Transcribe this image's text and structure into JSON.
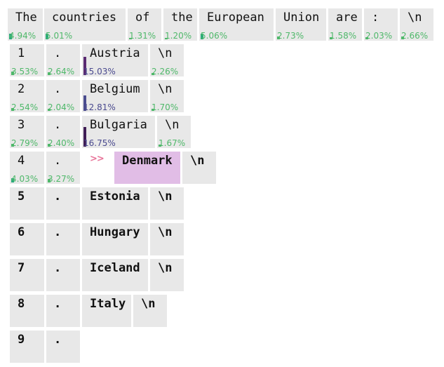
{
  "colors": {
    "token_bg": "#e8e8e8",
    "selected_bg": "#e1bde6",
    "prob_green": "#4fb86a",
    "bar_green": "#2bab7a",
    "bar_purple_dark": "#3f1d55",
    "bar_purple_mid": "#5a2b72",
    "bar_blue": "#4b4d8f",
    "marker_pink": "#e8759a"
  },
  "prompt_tokens": [
    {
      "text": "The",
      "prob": "4.94%"
    },
    {
      "text": "countries",
      "prob": "5.01%"
    },
    {
      "text": "of",
      "prob": "1.31%"
    },
    {
      "text": "the",
      "prob": "1.20%"
    },
    {
      "text": "European",
      "prob": "5.06%"
    },
    {
      "text": "Union",
      "prob": "2.73%"
    },
    {
      "text": "are",
      "prob": "1.58%"
    },
    {
      "text": ":",
      "prob": "2.03%"
    },
    {
      "text": "\\n",
      "prob": "2.66%"
    }
  ],
  "rows": [
    {
      "num": "1",
      "num_prob": "3.53%",
      "dot": ".",
      "dot_prob": "2.64%",
      "word": "Austria",
      "word_prob": "15.03%",
      "nl": "\\n",
      "nl_prob": "2.26%"
    },
    {
      "num": "2",
      "num_prob": "2.54%",
      "dot": ".",
      "dot_prob": "2.04%",
      "word": "Belgium",
      "word_prob": "12.81%",
      "nl": "\\n",
      "nl_prob": "1.70%"
    },
    {
      "num": "3",
      "num_prob": "2.79%",
      "dot": ".",
      "dot_prob": "2.40%",
      "word": "Bulgaria",
      "word_prob": "16.75%",
      "nl": "\\n",
      "nl_prob": "1.67%"
    },
    {
      "num": "4",
      "num_prob": "4.03%",
      "dot": ".",
      "dot_prob": "3.27%",
      "marker": ">>",
      "word": "Denmark",
      "nl": "\\n"
    },
    {
      "num": "5",
      "dot": ".",
      "word": "Estonia",
      "nl": "\\n"
    },
    {
      "num": "6",
      "dot": ".",
      "word": "Hungary",
      "nl": "\\n"
    },
    {
      "num": "7",
      "dot": ".",
      "word": "Iceland",
      "nl": "\\n"
    },
    {
      "num": "8",
      "dot": ".",
      "word": "Italy",
      "nl": "\\n"
    },
    {
      "num": "9",
      "dot": "."
    }
  ]
}
